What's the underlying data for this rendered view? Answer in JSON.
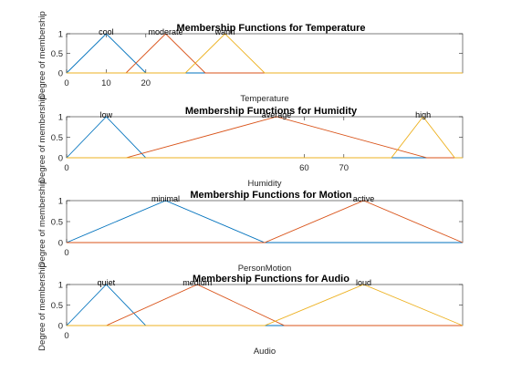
{
  "chart_data": [
    {
      "type": "line",
      "title": "Membership Functions for Temperature",
      "xlabel": "Temperature",
      "ylabel": "Degree of membership",
      "xlim": [
        0,
        100
      ],
      "ylim": [
        0,
        1
      ],
      "xticks": [
        {
          "value": 0,
          "label": "0"
        },
        {
          "value": 10,
          "label": "10"
        },
        {
          "value": 20,
          "label": "20"
        }
      ],
      "yticks": [
        {
          "value": 0,
          "label": "0"
        },
        {
          "value": 0.5,
          "label": "0.5"
        },
        {
          "value": 1,
          "label": "1"
        }
      ],
      "series": [
        {
          "name": "cool",
          "color": "#0072bd",
          "points": [
            [
              0,
              0
            ],
            [
              10,
              1
            ],
            [
              20,
              0
            ]
          ]
        },
        {
          "name": "moderate",
          "color": "#d95319",
          "points": [
            [
              15,
              0
            ],
            [
              25,
              1
            ],
            [
              35,
              0
            ]
          ]
        },
        {
          "name": "warm",
          "color": "#edb120",
          "points": [
            [
              30,
              0
            ],
            [
              40,
              1
            ],
            [
              50,
              0
            ]
          ]
        }
      ]
    },
    {
      "type": "line",
      "title": "Membership Functions for Humidity",
      "xlabel": "Humidity",
      "ylabel": "Degree of membership",
      "xlim": [
        0,
        100
      ],
      "ylim": [
        0,
        1
      ],
      "xticks": [
        {
          "value": 0,
          "label": "0"
        },
        {
          "value": 60,
          "label": "60"
        },
        {
          "value": 70,
          "label": "70"
        }
      ],
      "yticks": [
        {
          "value": 0,
          "label": "0"
        },
        {
          "value": 0.5,
          "label": "0.5"
        },
        {
          "value": 1,
          "label": "1"
        }
      ],
      "series": [
        {
          "name": "low",
          "color": "#0072bd",
          "points": [
            [
              0,
              0
            ],
            [
              10,
              1
            ],
            [
              20,
              0
            ]
          ]
        },
        {
          "name": "average",
          "color": "#d95319",
          "points": [
            [
              15,
              0
            ],
            [
              53,
              1
            ],
            [
              91,
              0
            ]
          ]
        },
        {
          "name": "high",
          "color": "#edb120",
          "points": [
            [
              82,
              0
            ],
            [
              90,
              1
            ],
            [
              98,
              0
            ]
          ]
        }
      ]
    },
    {
      "type": "line",
      "title": "Membership Functions for Motion",
      "xlabel": "PersonMotion",
      "ylabel": "Degree of membership",
      "xlim": [
        0,
        1
      ],
      "ylim": [
        0,
        1
      ],
      "xticks": [
        {
          "value": 0,
          "label": "0"
        }
      ],
      "yticks": [
        {
          "value": 0,
          "label": "0"
        },
        {
          "value": 0.5,
          "label": "0.5"
        },
        {
          "value": 1,
          "label": "1"
        }
      ],
      "series": [
        {
          "name": "minimal",
          "color": "#0072bd",
          "points": [
            [
              0,
              0
            ],
            [
              0.25,
              1
            ],
            [
              0.5,
              0
            ]
          ]
        },
        {
          "name": "active",
          "color": "#d95319",
          "points": [
            [
              0.5,
              0
            ],
            [
              0.75,
              1
            ],
            [
              1,
              0
            ]
          ]
        }
      ]
    },
    {
      "type": "line",
      "title": "Membership Functions for Audio",
      "xlabel": "Audio",
      "ylabel": "Degree of membership",
      "xlim": [
        0,
        100
      ],
      "ylim": [
        0,
        1
      ],
      "xticks": [
        {
          "value": 0,
          "label": "0"
        }
      ],
      "yticks": [
        {
          "value": 0,
          "label": "0"
        },
        {
          "value": 0.5,
          "label": "0.5"
        },
        {
          "value": 1,
          "label": "1"
        }
      ],
      "series": [
        {
          "name": "quiet",
          "color": "#0072bd",
          "points": [
            [
              0,
              0
            ],
            [
              10,
              1
            ],
            [
              20,
              0
            ]
          ]
        },
        {
          "name": "medium",
          "color": "#d95319",
          "points": [
            [
              10,
              0
            ],
            [
              33,
              1
            ],
            [
              55,
              0
            ]
          ]
        },
        {
          "name": "loud",
          "color": "#edb120",
          "points": [
            [
              50,
              0
            ],
            [
              75,
              1
            ],
            [
              100,
              0
            ]
          ]
        }
      ]
    }
  ]
}
